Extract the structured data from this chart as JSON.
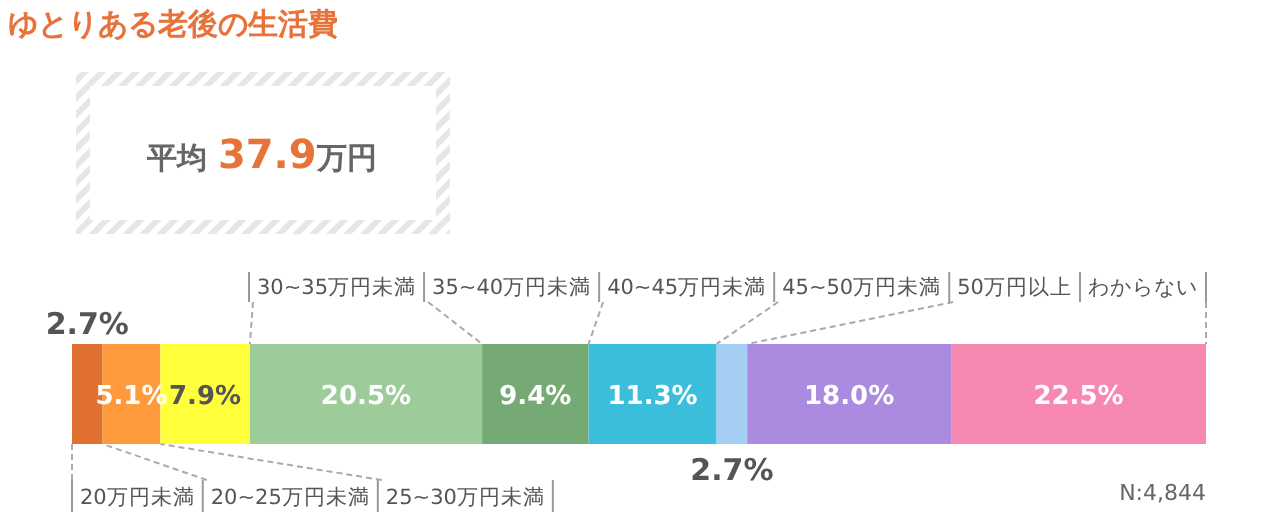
{
  "chart_data": {
    "type": "bar",
    "title": "ゆとりある老後の生活費",
    "orientation": "horizontal",
    "stacked": true,
    "categories": [
      null
    ],
    "annotations": [
      "平均 37.9万円",
      "N:4,844"
    ],
    "series": [
      {
        "name": "20万円未満",
        "color": "#e07030",
        "values": [
          2.7
        ],
        "value_labels": [
          "2.7%"
        ]
      },
      {
        "name": "20~25万円未満",
        "color": "#ff9a3c",
        "values": [
          5.1
        ],
        "value_labels": [
          "5.1%"
        ]
      },
      {
        "name": "25~30万円未満",
        "color": "#ffff3c",
        "values": [
          7.9
        ],
        "value_labels": [
          "7.9%"
        ]
      },
      {
        "name": "30~35万円未満",
        "color": "#9dcc9a",
        "values": [
          20.5
        ],
        "value_labels": [
          "20.5%"
        ]
      },
      {
        "name": "35~40万円未満",
        "color": "#76aa74",
        "values": [
          9.4
        ],
        "value_labels": [
          "9.4%"
        ]
      },
      {
        "name": "40~45万円未満",
        "color": "#3bbedb",
        "values": [
          11.3
        ],
        "value_labels": [
          "11.3%"
        ]
      },
      {
        "name": "45~50万円未満",
        "color": "#a4cef2",
        "values": [
          2.7
        ],
        "value_labels": [
          "2.7%"
        ]
      },
      {
        "name": "50万円以上",
        "color": "#aa8be0",
        "values": [
          18.0
        ],
        "value_labels": [
          "18.0%"
        ]
      },
      {
        "name": "わからない",
        "color": "#f788b2",
        "values": [
          22.5
        ],
        "value_labels": [
          "22.5%"
        ]
      }
    ]
  }
}
